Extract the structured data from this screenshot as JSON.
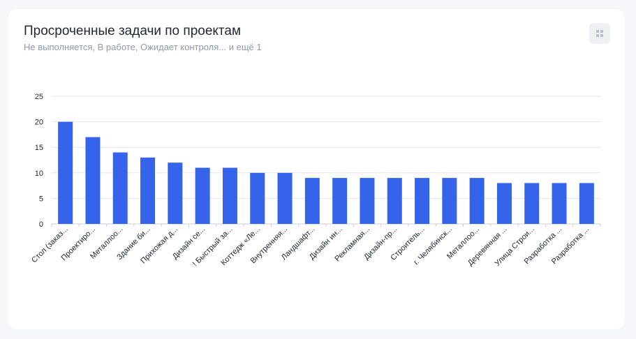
{
  "card": {
    "title": "Просроченные задачи по проектам",
    "subtitle": "Не выполняется, В работе, Ожидает контроля... и ещё 1"
  },
  "menu_icon": "grid-dots-icon",
  "colors": {
    "bar": "#3563e9",
    "grid": "#e3e6eb",
    "text": "#222831",
    "subtext": "#8f99a8"
  },
  "chart_data": {
    "type": "bar",
    "categories": [
      "Стол (заказ...",
      "Проектиро...",
      "Металлоо...",
      "Здание би...",
      "Прихожая д...",
      "Дизайн се...",
      "! Быстрый за...",
      "Коттедж «Ле...",
      "Внутренняя...",
      "Ландшафт...",
      "Дизайн ин...",
      "Рекламная...",
      "Дизайн-пр...",
      "Строитель...",
      "г. Челябинск...",
      "Металлоо...",
      "Деревянная ...",
      "Улица Строи...",
      "Разработка ...",
      "Разработка ..."
    ],
    "values": [
      20,
      17,
      14,
      13,
      12,
      11,
      11,
      10,
      10,
      9,
      9,
      9,
      9,
      9,
      9,
      9,
      8,
      8,
      8,
      8
    ],
    "yticks": [
      "0",
      "5",
      "10",
      "15",
      "20",
      "25"
    ],
    "ylim": [
      0,
      25
    ],
    "grid": true
  }
}
